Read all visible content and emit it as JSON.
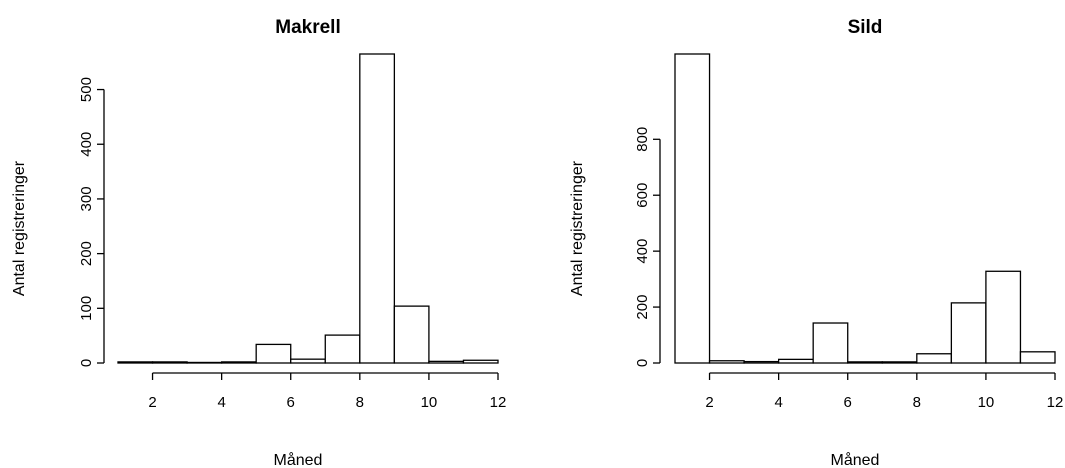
{
  "chart_data": [
    {
      "type": "bar",
      "title": "Makrell",
      "xlabel": "Måned",
      "ylabel": "Antal registreringer",
      "bin_edges": [
        1,
        2,
        3,
        4,
        5,
        6,
        7,
        8,
        9,
        10,
        11,
        12
      ],
      "values": [
        2,
        2,
        1,
        2,
        34,
        7,
        51,
        565,
        104,
        3,
        5
      ],
      "xlim": [
        1,
        12
      ],
      "ylim": [
        0,
        565
      ],
      "xticks": [
        2,
        4,
        6,
        8,
        10,
        12
      ],
      "yticks": [
        0,
        100,
        200,
        300,
        400,
        500
      ],
      "grid": false
    },
    {
      "type": "bar",
      "title": "Sild",
      "xlabel": "Måned",
      "ylabel": "Antal registreringer",
      "bin_edges": [
        1,
        2,
        3,
        4,
        5,
        6,
        7,
        8,
        9,
        10,
        11,
        12
      ],
      "values": [
        1105,
        8,
        5,
        13,
        143,
        4,
        4,
        33,
        215,
        328,
        40
      ],
      "xlim": [
        1,
        12
      ],
      "ylim": [
        0,
        1105
      ],
      "xticks": [
        2,
        4,
        6,
        8,
        10,
        12
      ],
      "yticks": [
        0,
        200,
        400,
        600,
        800
      ],
      "grid": false
    }
  ]
}
